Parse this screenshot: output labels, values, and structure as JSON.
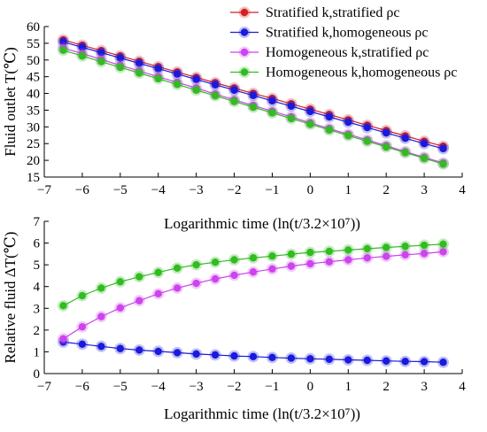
{
  "chart_data": [
    {
      "type": "line",
      "title": "",
      "xlabel": "Logarithmic time (ln(t/3.2×10⁷))",
      "ylabel": "Fluid outlet T(℃)",
      "xlim": [
        -7,
        4
      ],
      "ylim": [
        15,
        60
      ],
      "xticks": [
        -7,
        -6,
        -5,
        -4,
        -3,
        -2,
        -1,
        0,
        1,
        2,
        3,
        4
      ],
      "yticks": [
        15,
        20,
        25,
        30,
        35,
        40,
        45,
        50,
        55,
        60
      ],
      "x": [
        -6.5,
        -6,
        -5.5,
        -5,
        -4.5,
        -4,
        -3.5,
        -3,
        -2.5,
        -2,
        -1.5,
        -1,
        -0.5,
        0,
        0.5,
        1,
        1.5,
        2,
        2.5,
        3,
        3.5
      ],
      "legend_position": "top-right",
      "grid": false,
      "series": [
        {
          "name": "Stratified k,stratified ρc",
          "color": "#d42020",
          "values": [
            56.0,
            54.4,
            52.8,
            51.2,
            49.6,
            48.0,
            46.4,
            44.8,
            43.2,
            41.6,
            40.0,
            38.5,
            36.9,
            35.3,
            33.7,
            32.1,
            30.5,
            28.9,
            27.3,
            25.7,
            24.2
          ]
        },
        {
          "name": "Stratified k,homogeneous ρc",
          "color": "#1a1adc",
          "values": [
            55.4,
            53.8,
            52.2,
            50.6,
            49.0,
            47.4,
            45.8,
            44.2,
            42.6,
            41.0,
            39.4,
            37.8,
            36.2,
            34.6,
            33.0,
            31.4,
            29.8,
            28.2,
            26.6,
            25.0,
            23.5
          ]
        },
        {
          "name": "Homogeneous k,stratified ρc",
          "color": "#cc44ee",
          "values": [
            53.6,
            51.9,
            50.2,
            48.4,
            46.7,
            45.0,
            43.3,
            41.6,
            39.8,
            38.1,
            36.4,
            34.7,
            33.0,
            31.2,
            29.5,
            27.8,
            26.1,
            24.4,
            22.6,
            20.9,
            19.2
          ]
        },
        {
          "name": "Homogeneous k,homogeneous ρc",
          "color": "#33bb22",
          "values": [
            52.9,
            51.2,
            49.5,
            47.8,
            46.1,
            44.4,
            42.7,
            41.0,
            39.3,
            37.6,
            35.9,
            34.2,
            32.5,
            30.8,
            29.1,
            27.4,
            25.7,
            24.0,
            22.3,
            20.6,
            18.9
          ]
        }
      ]
    },
    {
      "type": "line",
      "title": "",
      "xlabel": "Logarithmic time (ln(t/3.2×10⁷))",
      "ylabel": "Relative fluid ΔT(℃)",
      "xlim": [
        -7,
        4
      ],
      "ylim": [
        0,
        7
      ],
      "xticks": [
        -7,
        -6,
        -5,
        -4,
        -3,
        -2,
        -1,
        0,
        1,
        2,
        3,
        4
      ],
      "yticks": [
        0,
        1,
        2,
        3,
        4,
        5,
        6,
        7
      ],
      "x": [
        -6.5,
        -6,
        -5.5,
        -5,
        -4.5,
        -4,
        -3.5,
        -3,
        -2.5,
        -2,
        -1.5,
        -1,
        -0.5,
        0,
        0.5,
        1,
        1.5,
        2,
        2.5,
        3,
        3.5
      ],
      "legend_position": "",
      "grid": false,
      "series": [
        {
          "color": "#1a1adc",
          "values": [
            1.45,
            1.35,
            1.25,
            1.15,
            1.08,
            1.02,
            0.96,
            0.9,
            0.86,
            0.81,
            0.78,
            0.74,
            0.71,
            0.68,
            0.66,
            0.63,
            0.61,
            0.58,
            0.56,
            0.55,
            0.52
          ]
        },
        {
          "color": "#cc44ee",
          "values": [
            1.6,
            2.15,
            2.62,
            3.02,
            3.35,
            3.67,
            3.93,
            4.15,
            4.35,
            4.52,
            4.67,
            4.81,
            4.94,
            5.05,
            5.14,
            5.23,
            5.32,
            5.39,
            5.46,
            5.52,
            5.6
          ]
        },
        {
          "color": "#33bb22",
          "values": [
            3.12,
            3.58,
            3.93,
            4.22,
            4.45,
            4.65,
            4.85,
            5.0,
            5.12,
            5.23,
            5.32,
            5.4,
            5.49,
            5.57,
            5.62,
            5.68,
            5.74,
            5.8,
            5.85,
            5.9,
            5.95
          ]
        }
      ]
    }
  ]
}
